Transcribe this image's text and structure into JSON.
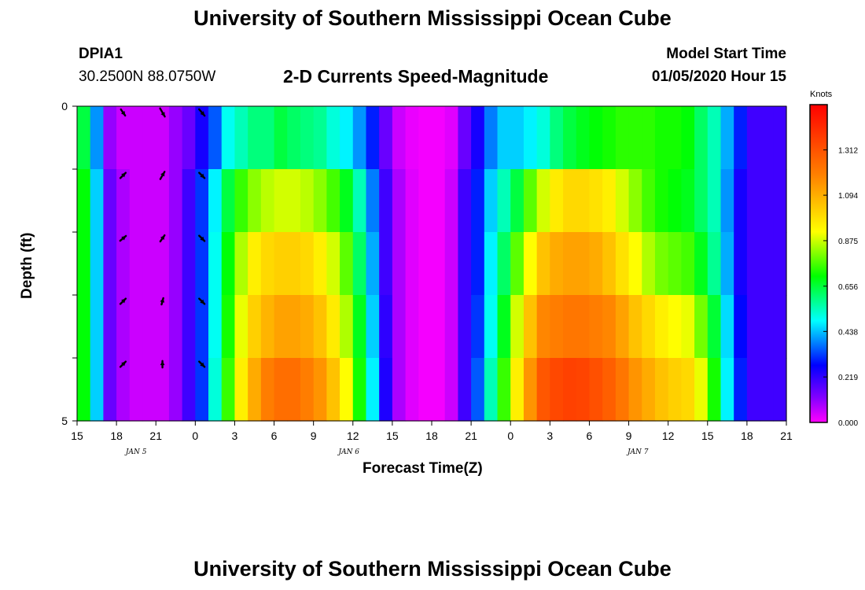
{
  "header": {
    "title": "University of Southern Mississippi Ocean Cube",
    "station_id": "DPIA1",
    "station_coords": "30.2500N 88.0750W",
    "chart_title": "2-D Currents Speed-Magnitude",
    "model_start_label": "Model Start Time",
    "model_start_value": "01/05/2020 Hour 15"
  },
  "footer": {
    "title": "University of Southern Mississippi Ocean Cube"
  },
  "colors": {
    "background": "#ffffff",
    "text": "#000000",
    "arrow": "#000000",
    "colorbar_frame": "#000000"
  },
  "chart_data": {
    "type": "heatmap",
    "title": "2-D Currents Speed-Magnitude",
    "xlabel": "Forecast Time(Z)",
    "ylabel": "Depth (ft)",
    "colorbar_label": "Knots",
    "colorbar_ticks": [
      "1.312",
      "1.094",
      "0.875",
      "0.656",
      "0.438",
      "0.219",
      "0.000"
    ],
    "color_range": [
      0,
      1.53
    ],
    "x_tick_labels": [
      "15",
      "18",
      "21",
      "0",
      "3",
      "6",
      "9",
      "12",
      "15",
      "18",
      "21",
      "0",
      "3",
      "6",
      "9",
      "12",
      "15",
      "18",
      "21"
    ],
    "date_labels": [
      {
        "text": "JAN 5",
        "hour_index": 4.5
      },
      {
        "text": "JAN 6",
        "hour_index": 20.7
      },
      {
        "text": "JAN 7",
        "hour_index": 42.7
      }
    ],
    "y_tick_labels": [
      "0",
      "5"
    ],
    "ylim": [
      0,
      5
    ],
    "hours": 54,
    "depth_layers": 5,
    "speed_profiles": [
      [
        0.65,
        0.4,
        0.1,
        0.05,
        0.05,
        0.05,
        0.05,
        0.1,
        0.15,
        0.25,
        0.35,
        0.5,
        0.55,
        0.6,
        0.6,
        0.65,
        0.62,
        0.6,
        0.58,
        0.52,
        0.48,
        0.4,
        0.3,
        0.15,
        0.05,
        0.02,
        0.01,
        0.01,
        0.03,
        0.15,
        0.25,
        0.38,
        0.45,
        0.45,
        0.48,
        0.52,
        0.6,
        0.65,
        0.68,
        0.7,
        0.72,
        0.74,
        0.74,
        0.74,
        0.72,
        0.72,
        0.7,
        0.62,
        0.55,
        0.42,
        0.3,
        0.2,
        0.2,
        0.2
      ],
      [
        0.7,
        0.45,
        0.15,
        0.08,
        0.05,
        0.05,
        0.05,
        0.1,
        0.2,
        0.32,
        0.48,
        0.65,
        0.75,
        0.82,
        0.86,
        0.88,
        0.88,
        0.86,
        0.82,
        0.76,
        0.68,
        0.55,
        0.38,
        0.2,
        0.08,
        0.03,
        0.01,
        0.01,
        0.05,
        0.2,
        0.3,
        0.45,
        0.55,
        0.65,
        0.78,
        0.88,
        0.96,
        1.0,
        1.0,
        0.98,
        0.95,
        0.88,
        0.82,
        0.76,
        0.72,
        0.7,
        0.68,
        0.62,
        0.55,
        0.4,
        0.25,
        0.2,
        0.2,
        0.2
      ],
      [
        0.7,
        0.45,
        0.15,
        0.08,
        0.05,
        0.05,
        0.05,
        0.1,
        0.2,
        0.32,
        0.5,
        0.7,
        0.85,
        0.95,
        1.0,
        1.02,
        1.02,
        1.0,
        0.95,
        0.88,
        0.78,
        0.62,
        0.42,
        0.2,
        0.08,
        0.03,
        0.01,
        0.01,
        0.05,
        0.2,
        0.3,
        0.48,
        0.62,
        0.78,
        0.92,
        1.05,
        1.1,
        1.12,
        1.12,
        1.1,
        1.05,
        0.98,
        0.92,
        0.85,
        0.8,
        0.78,
        0.76,
        0.68,
        0.58,
        0.42,
        0.25,
        0.2,
        0.2,
        0.2
      ],
      [
        0.7,
        0.45,
        0.15,
        0.08,
        0.05,
        0.05,
        0.05,
        0.1,
        0.2,
        0.32,
        0.5,
        0.72,
        0.9,
        1.02,
        1.08,
        1.12,
        1.12,
        1.1,
        1.05,
        0.96,
        0.85,
        0.68,
        0.45,
        0.22,
        0.08,
        0.03,
        0.01,
        0.01,
        0.05,
        0.2,
        0.32,
        0.5,
        0.68,
        0.88,
        1.05,
        1.18,
        1.2,
        1.22,
        1.22,
        1.2,
        1.18,
        1.12,
        1.05,
        1.0,
        0.95,
        0.92,
        0.9,
        0.8,
        0.66,
        0.46,
        0.28,
        0.2,
        0.2,
        0.2
      ],
      [
        0.7,
        0.45,
        0.15,
        0.08,
        0.05,
        0.05,
        0.05,
        0.1,
        0.2,
        0.32,
        0.52,
        0.75,
        0.95,
        1.1,
        1.2,
        1.24,
        1.24,
        1.2,
        1.15,
        1.05,
        0.92,
        0.72,
        0.48,
        0.24,
        0.08,
        0.03,
        0.01,
        0.01,
        0.05,
        0.2,
        0.35,
        0.55,
        0.75,
        0.95,
        1.15,
        1.3,
        1.34,
        1.36,
        1.35,
        1.32,
        1.28,
        1.22,
        1.15,
        1.1,
        1.05,
        1.02,
        1.0,
        0.9,
        0.72,
        0.48,
        0.3,
        0.2,
        0.2,
        0.2
      ]
    ],
    "arrows": [
      {
        "hour": 3.0,
        "depth": 0.1,
        "angle": -55,
        "length": 0.4
      },
      {
        "hour": 6.0,
        "depth": 0.1,
        "angle": -60,
        "length": 0.5
      },
      {
        "hour": 9.0,
        "depth": 0.1,
        "angle": -50,
        "length": 0.45
      },
      {
        "hour": 3.0,
        "depth": 1.1,
        "angle": 45,
        "length": 0.4
      },
      {
        "hour": 6.0,
        "depth": 1.1,
        "angle": 60,
        "length": 0.45
      },
      {
        "hour": 9.0,
        "depth": 1.1,
        "angle": -45,
        "length": 0.4
      },
      {
        "hour": 3.0,
        "depth": 2.1,
        "angle": 40,
        "length": 0.4
      },
      {
        "hour": 6.0,
        "depth": 2.1,
        "angle": 55,
        "length": 0.4
      },
      {
        "hour": 9.0,
        "depth": 2.1,
        "angle": -45,
        "length": 0.4
      },
      {
        "hour": 3.0,
        "depth": 3.1,
        "angle": 45,
        "length": 0.4
      },
      {
        "hour": 6.0,
        "depth": 3.1,
        "angle": 75,
        "length": 0.35
      },
      {
        "hour": 9.0,
        "depth": 3.1,
        "angle": -45,
        "length": 0.4
      },
      {
        "hour": 3.0,
        "depth": 4.1,
        "angle": 45,
        "length": 0.4
      },
      {
        "hour": 6.0,
        "depth": 4.1,
        "angle": 90,
        "length": 0.35
      },
      {
        "hour": 9.0,
        "depth": 4.1,
        "angle": -45,
        "length": 0.4
      }
    ]
  }
}
